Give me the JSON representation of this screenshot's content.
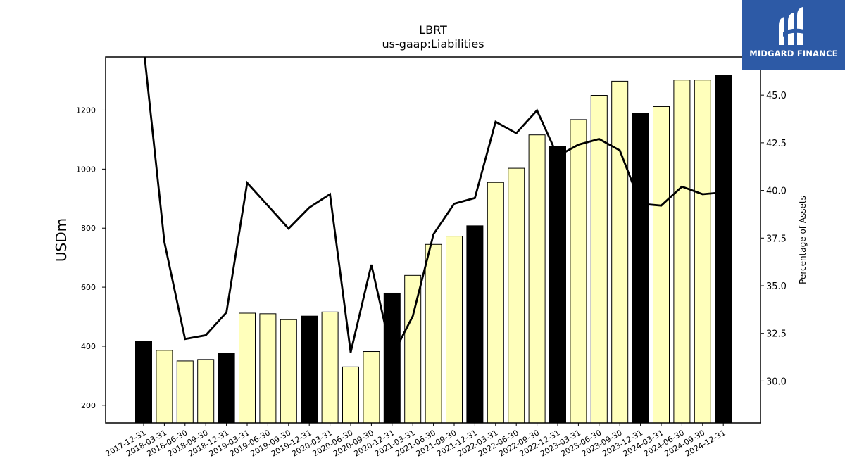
{
  "chart_data": {
    "type": "bar",
    "title": "LBRT",
    "subtitle": "us-gaap:Liabilities",
    "ylabel": "USDm",
    "y2label": "Percentage of Assets",
    "ylim": [
      140,
      1380
    ],
    "y2lim": [
      27.8,
      47.0
    ],
    "yticks": [
      200,
      400,
      600,
      800,
      1000,
      1200
    ],
    "y2ticks": [
      30.0,
      32.5,
      35.0,
      37.5,
      40.0,
      42.5,
      45.0
    ],
    "y2tick_labels": [
      "30.0",
      "32.5",
      "35.0",
      "37.5",
      "40.0",
      "42.5",
      "45.0"
    ],
    "categories": [
      "2017-12-31",
      "2018-03-31",
      "2018-06-30",
      "2018-09-30",
      "2018-12-31",
      "2019-03-31",
      "2019-06-30",
      "2019-09-30",
      "2019-12-31",
      "2020-03-31",
      "2020-06-30",
      "2020-09-30",
      "2020-12-31",
      "2021-03-31",
      "2021-06-30",
      "2021-09-30",
      "2021-12-31",
      "2022-03-31",
      "2022-06-30",
      "2022-09-30",
      "2022-12-31",
      "2023-03-31",
      "2023-06-30",
      "2023-09-30",
      "2023-12-31",
      "2024-03-31",
      "2024-06-30",
      "2024-09-30",
      "2024-12-31"
    ],
    "series": [
      {
        "type": "bar",
        "axis": "left",
        "values": [
          416,
          386,
          350,
          355,
          375,
          512,
          510,
          490,
          502,
          516,
          330,
          382,
          580,
          640,
          745,
          773,
          808,
          955,
          1003,
          1116,
          1078,
          1168,
          1250,
          1298,
          1190,
          1212,
          1302,
          1302,
          1317
        ],
        "fiscal_year_end": [
          true,
          false,
          false,
          false,
          true,
          false,
          false,
          false,
          true,
          false,
          false,
          false,
          true,
          false,
          false,
          false,
          true,
          false,
          false,
          false,
          true,
          false,
          false,
          false,
          true,
          false,
          false,
          false,
          true
        ]
      },
      {
        "type": "line",
        "axis": "right",
        "values": [
          47.5,
          37.3,
          32.2,
          32.4,
          33.6,
          40.4,
          39.2,
          38.0,
          39.1,
          39.8,
          31.5,
          36.1,
          31.3,
          33.4,
          37.7,
          39.3,
          39.6,
          43.6,
          43.0,
          44.2,
          41.8,
          42.4,
          42.7,
          42.1,
          39.3,
          39.2,
          40.2,
          39.8,
          39.9
        ]
      }
    ],
    "colors": {
      "bar_fill": "#ffffbb",
      "bar_highlight": "#000000",
      "bar_edge": "#000000",
      "line": "#000000"
    },
    "grid": false,
    "legend": "none"
  },
  "logo": {
    "text": "MIDGARD FINANCE",
    "background": "#2d5aa6",
    "icon": "midgard-mark-icon"
  }
}
